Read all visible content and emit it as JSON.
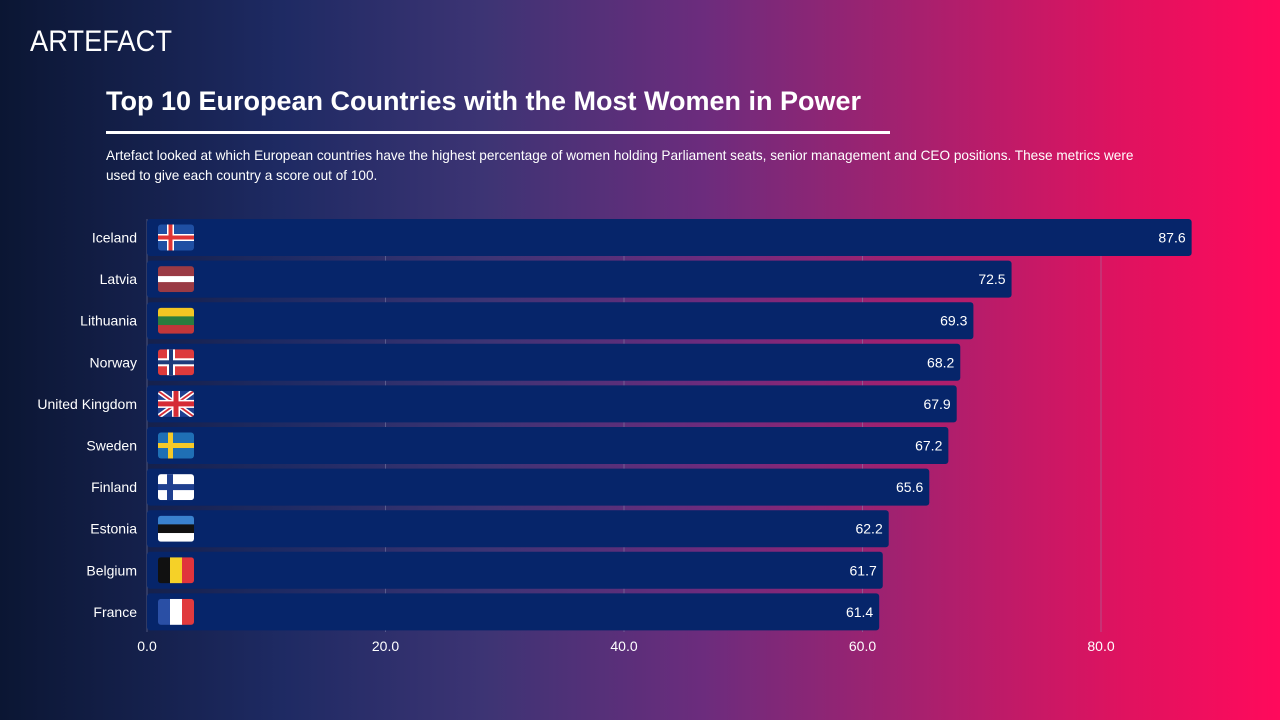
{
  "brand": {
    "name": "ARTEFACT"
  },
  "header": {
    "title": "Top 10 European Countries with the Most Women in Power",
    "subtitle": "Artefact looked at which European countries have the highest percentage of women holding Parliament seats, senior management and CEO positions. These metrics were used to give each country a score out of 100."
  },
  "colors": {
    "bar": "#06256a",
    "grid": "#8e95b5",
    "text": "#ffffff"
  },
  "chart_data": {
    "type": "bar",
    "orientation": "horizontal",
    "title": "Top 10 European Countries with the Most Women in Power",
    "xlabel": "",
    "ylabel": "",
    "xlim": [
      0,
      87.6
    ],
    "ticks": [
      "0.0",
      "20.0",
      "40.0",
      "60.0",
      "80.0"
    ],
    "tick_values": [
      0,
      20,
      40,
      60,
      80
    ],
    "categories": [
      "Iceland",
      "Latvia",
      "Lithuania",
      "Norway",
      "United Kingdom",
      "Sweden",
      "Finland",
      "Estonia",
      "Belgium",
      "France"
    ],
    "flags": [
      "iceland-flag-icon",
      "latvia-flag-icon",
      "lithuania-flag-icon",
      "norway-flag-icon",
      "united-kingdom-flag-icon",
      "sweden-flag-icon",
      "finland-flag-icon",
      "estonia-flag-icon",
      "belgium-flag-icon",
      "france-flag-icon"
    ],
    "values": [
      87.6,
      72.5,
      69.3,
      68.2,
      67.9,
      67.2,
      65.6,
      62.2,
      61.7,
      61.4
    ],
    "value_labels": [
      "87.6",
      "72.5",
      "69.3",
      "68.2",
      "67.9",
      "67.2",
      "65.6",
      "62.2",
      "61.7",
      "61.4"
    ],
    "grid": true
  }
}
